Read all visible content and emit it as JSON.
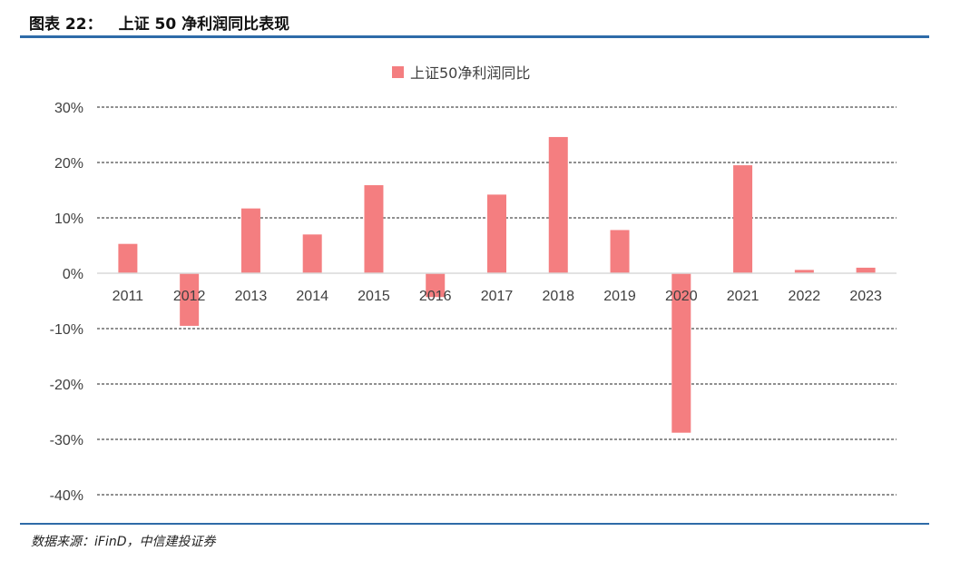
{
  "header": {
    "figure_label": "图表 22：",
    "title": "上证 50 净利润同比表现"
  },
  "footer": {
    "source": "数据来源：iFinD，中信建投证券"
  },
  "colors": {
    "rule": "#2e6ba8",
    "bar": "#f47e80",
    "text": "#404040",
    "grid": "#222222"
  },
  "chart_data": {
    "type": "bar",
    "title": "",
    "xlabel": "",
    "ylabel": "",
    "categories": [
      "2011",
      "2012",
      "2013",
      "2014",
      "2015",
      "2016",
      "2017",
      "2018",
      "2019",
      "2020",
      "2021",
      "2022",
      "2023"
    ],
    "series": [
      {
        "name": "上证50净利润同比",
        "values": [
          5.3,
          -9.5,
          11.7,
          7.0,
          15.9,
          -4.3,
          14.2,
          24.6,
          7.8,
          -28.8,
          19.5,
          0.6,
          1.0
        ]
      }
    ],
    "ylim": [
      -40,
      30
    ],
    "yticks": [
      "30%",
      "20%",
      "10%",
      "0%",
      "-10%",
      "-20%",
      "-30%",
      "-40%"
    ],
    "ytick_values": [
      30,
      20,
      10,
      0,
      -10,
      -20,
      -30,
      -40
    ],
    "grid": true,
    "legend_position": "top-center"
  }
}
